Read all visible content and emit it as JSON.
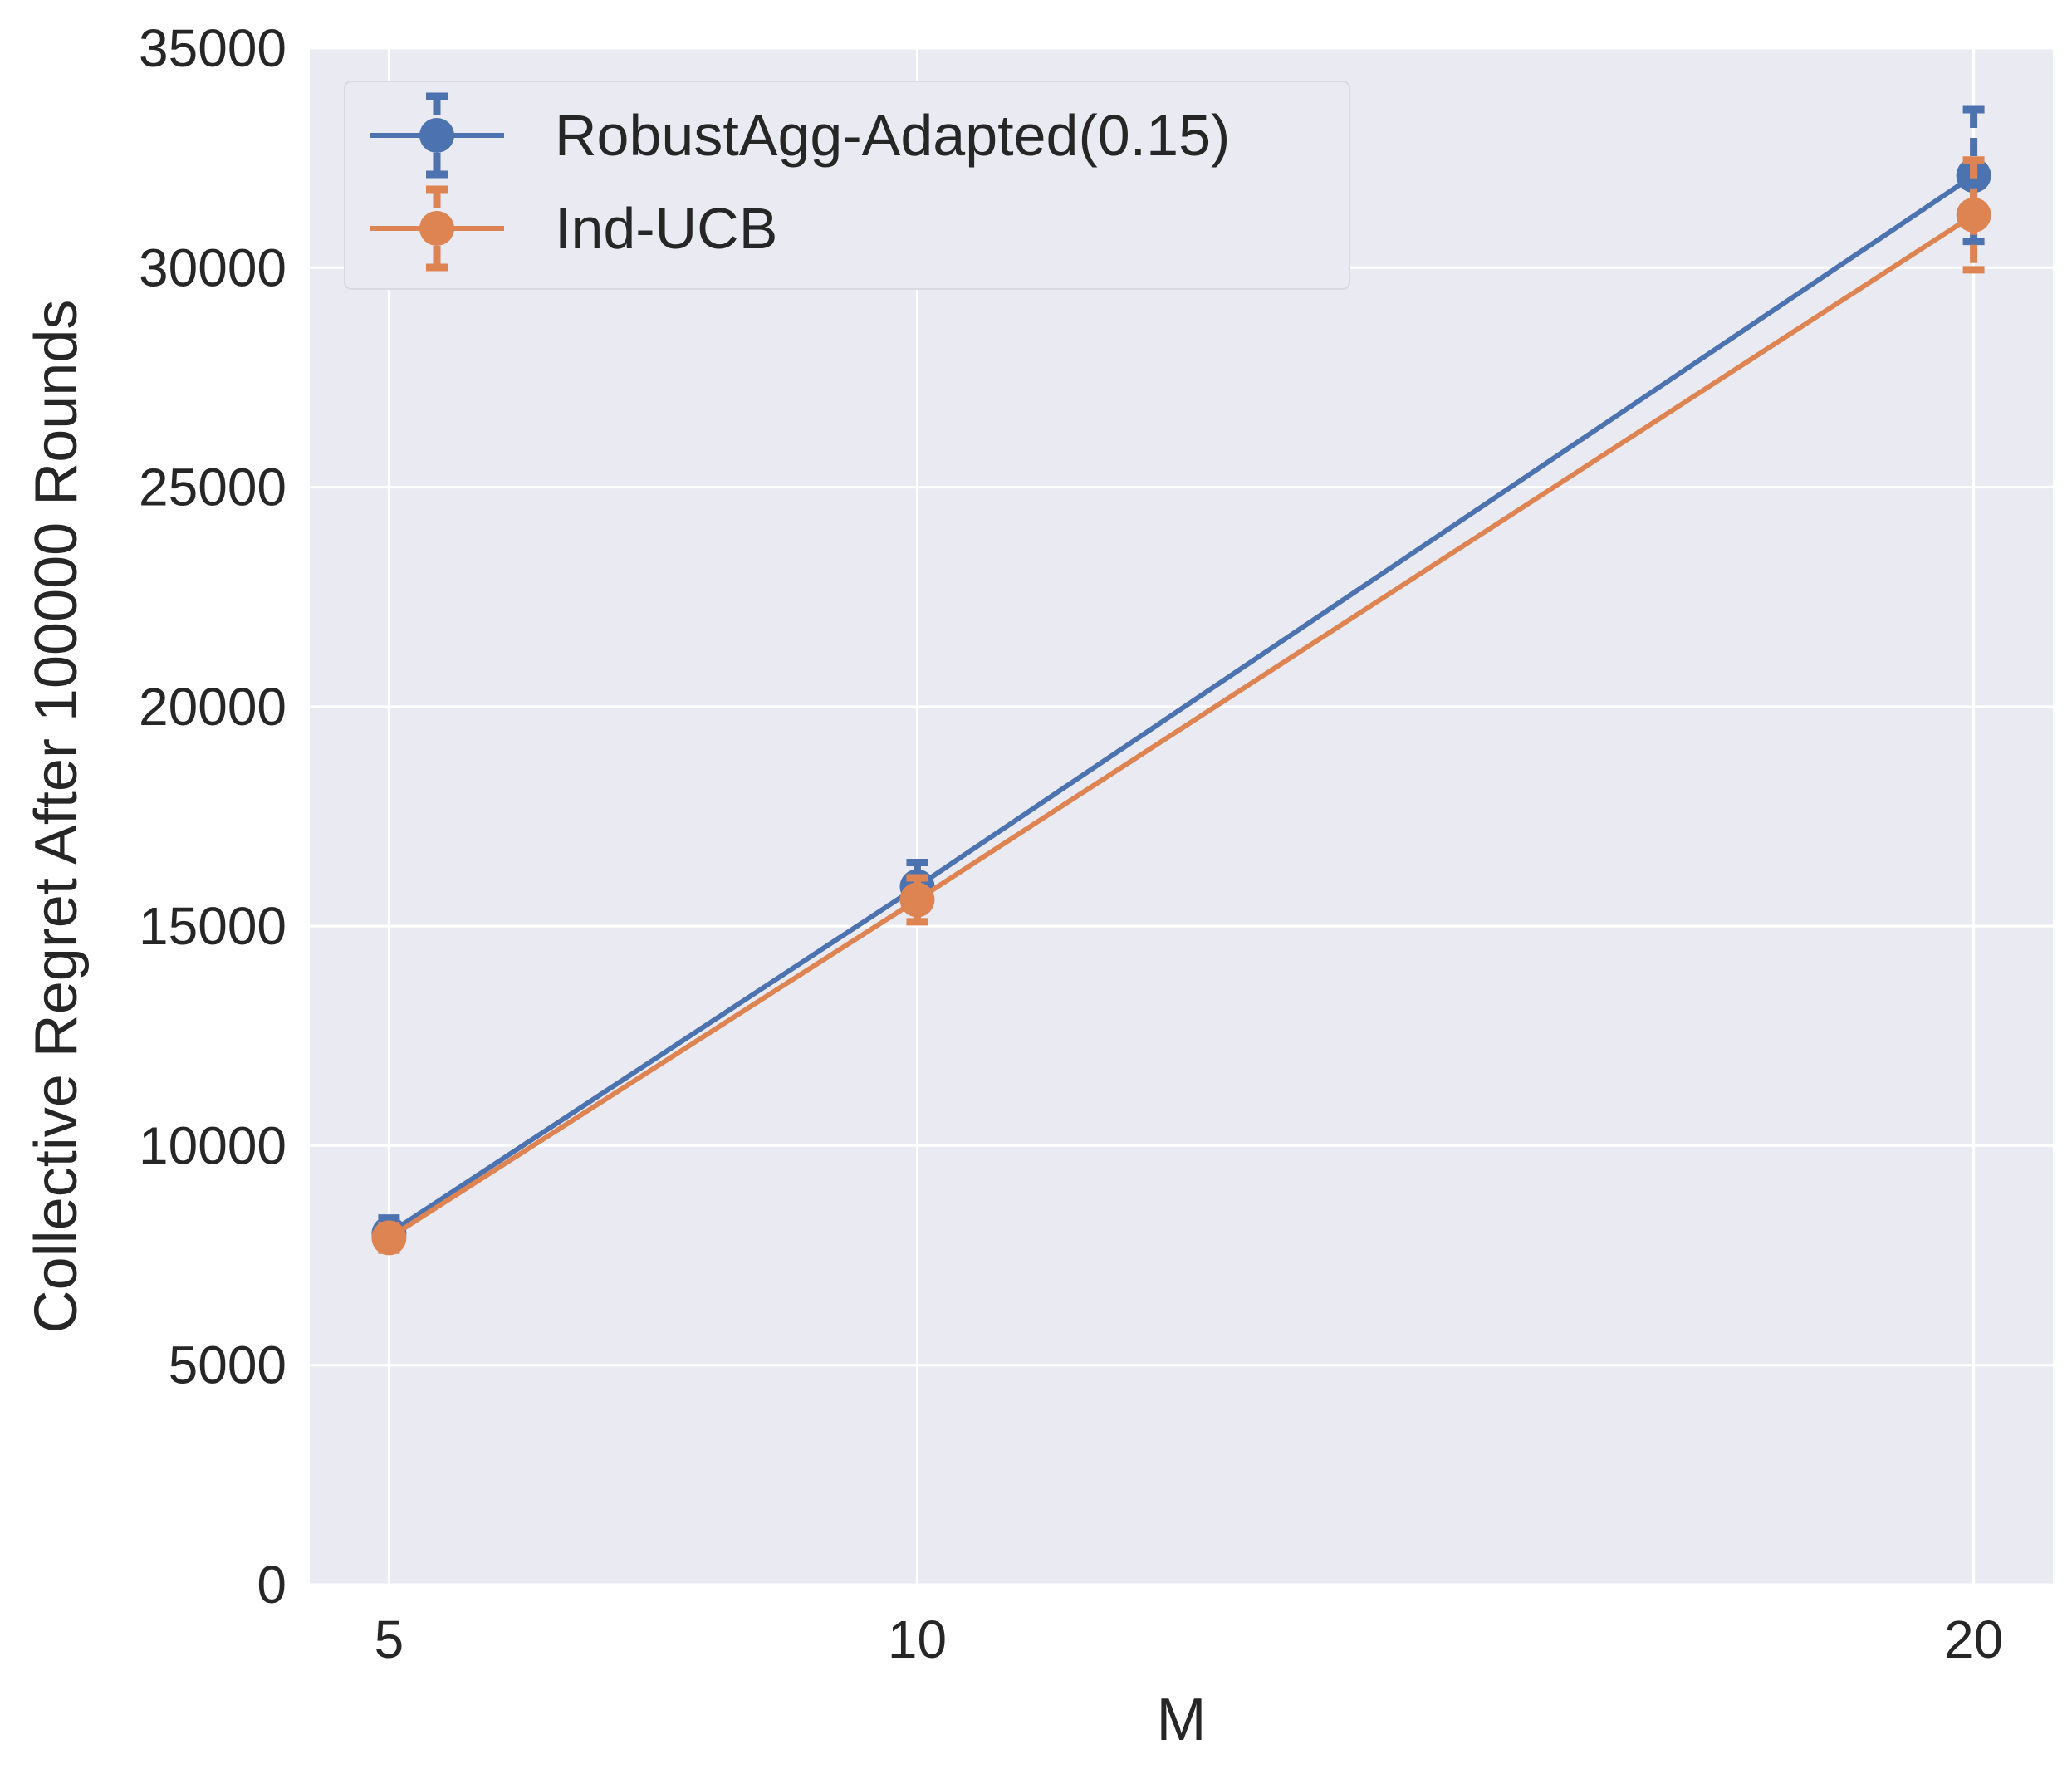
{
  "chart_data": {
    "type": "line",
    "title": "",
    "xlabel": "M",
    "ylabel": "Collective Regret After 100000 Rounds",
    "x": [
      5,
      10,
      20
    ],
    "x_ticks": [
      "5",
      "10",
      "20"
    ],
    "xlim": [
      4.25,
      20.75
    ],
    "ylim": [
      0,
      35000
    ],
    "y_ticks": [
      "0",
      "5000",
      "10000",
      "15000",
      "20000",
      "25000",
      "30000",
      "35000"
    ],
    "grid": true,
    "legend_position": "top-left",
    "error_bars": true,
    "series": [
      {
        "name": "RobustAgg-Adapted(0.15)",
        "color": "#4C72B0",
        "values": [
          8000,
          15900,
          32100
        ],
        "error": [
          350,
          550,
          1500
        ]
      },
      {
        "name": "Ind-UCB",
        "color": "#DD8452",
        "values": [
          7900,
          15600,
          31200
        ],
        "error": [
          280,
          500,
          1250
        ]
      }
    ],
    "colors": {
      "plot_background": "#EAEAF2",
      "grid": "#FFFFFF",
      "text": "#262626"
    }
  }
}
